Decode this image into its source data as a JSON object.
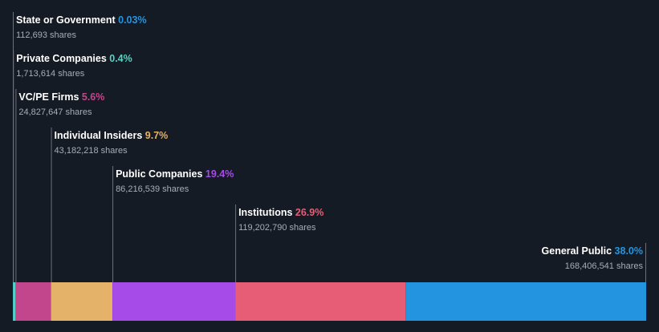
{
  "chart_data": {
    "type": "bar",
    "orientation": "stacked-horizontal",
    "title": "",
    "grid": false,
    "legend": "none",
    "share_suffix": "shares",
    "categories": [
      "State or Government",
      "Private Companies",
      "VC/PE Firms",
      "Individual Insiders",
      "Public Companies",
      "Institutions",
      "General Public"
    ],
    "series": [
      {
        "category": "State or Government",
        "percent_label": "0.03%",
        "percent": 0.03,
        "shares": "112,693",
        "color": "#2394df"
      },
      {
        "category": "Private Companies",
        "percent_label": "0.4%",
        "percent": 0.4,
        "shares": "1,713,614",
        "color": "#58d3c1"
      },
      {
        "category": "VC/PE Firms",
        "percent_label": "5.6%",
        "percent": 5.6,
        "shares": "24,827,647",
        "color": "#c2468c"
      },
      {
        "category": "Individual Insiders",
        "percent_label": "9.7%",
        "percent": 9.7,
        "shares": "43,182,218",
        "color": "#e4b268"
      },
      {
        "category": "Public Companies",
        "percent_label": "19.4%",
        "percent": 19.4,
        "shares": "86,216,539",
        "color": "#a64ae8"
      },
      {
        "category": "Institutions",
        "percent_label": "26.9%",
        "percent": 26.9,
        "shares": "119,202,790",
        "color": "#e85d76"
      },
      {
        "category": "General Public",
        "percent_label": "38.0%",
        "percent": 38.0,
        "shares": "168,406,541",
        "color": "#2394df"
      }
    ]
  }
}
